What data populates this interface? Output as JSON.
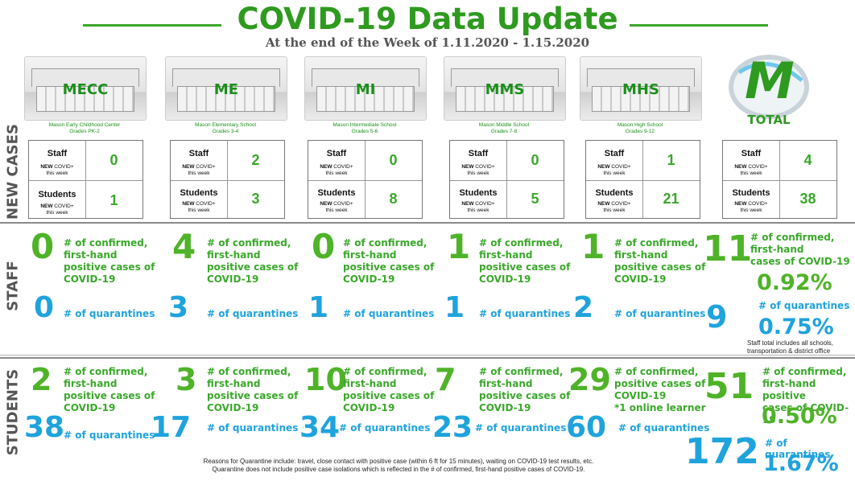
{
  "header": {
    "title": "COVID-19 Data Update",
    "subtitle": "At the end of the Week of 1.11.2020 - 1.15.2020"
  },
  "row_labels": {
    "new_cases": "NEW CASES",
    "staff": "STAFF",
    "students": "STUDENTS"
  },
  "schools": [
    {
      "code": "MECC",
      "name": "Mason Early Childhood Center",
      "grades": "Grades PK-2"
    },
    {
      "code": "ME",
      "name": "Mason Elementary School",
      "grades": "Grades 3-4"
    },
    {
      "code": "MI",
      "name": "Mason Intermediate  School",
      "grades": "Grades 5-6"
    },
    {
      "code": "MMS",
      "name": "Mason Middle School",
      "grades": "Grades 7-8"
    },
    {
      "code": "MHS",
      "name": "Mason High School",
      "grades": "Grades 9-12"
    }
  ],
  "total": {
    "logo_letter": "M",
    "label": "TOTAL"
  },
  "card_labels": {
    "staff": "Staff",
    "students": "Students",
    "new_bold": "NEW",
    "new_rest": " COVID+",
    "this_week": "this week"
  },
  "new_cases": [
    {
      "staff": "0",
      "students": "1"
    },
    {
      "staff": "2",
      "students": "3"
    },
    {
      "staff": "0",
      "students": "8"
    },
    {
      "staff": "0",
      "students": "5"
    },
    {
      "staff": "1",
      "students": "21"
    },
    {
      "staff": "4",
      "students": "38"
    }
  ],
  "staff": [
    {
      "confirmed": "0",
      "quarantines": "0"
    },
    {
      "confirmed": "4",
      "quarantines": "3"
    },
    {
      "confirmed": "0",
      "quarantines": "1"
    },
    {
      "confirmed": "1",
      "quarantines": "1"
    },
    {
      "confirmed": "1",
      "quarantines": "2"
    }
  ],
  "staff_total": {
    "confirmed": "11",
    "confirmed_pct": "0.92%",
    "quarantines": "9",
    "quarantines_pct": "0.75%",
    "note1": "Staff total includes all schools,",
    "note2": "transportation & district office"
  },
  "students": [
    {
      "confirmed": "2",
      "quarantines": "38"
    },
    {
      "confirmed": "3",
      "quarantines": "17"
    },
    {
      "confirmed": "10",
      "quarantines": "34"
    },
    {
      "confirmed": "7",
      "quarantines": "23"
    },
    {
      "confirmed": "29",
      "quarantines": "60",
      "note": "*1 online learner"
    }
  ],
  "students_total": {
    "confirmed": "51",
    "confirmed_pct": "0.50%",
    "quarantines": "172",
    "quarantines_pct": "1.67%"
  },
  "text": {
    "confirmed_l1": "# of confirmed,",
    "confirmed_l2": "first-hand",
    "confirmed_l3": "positive cases of",
    "confirmed_l4": "COVID-19",
    "mhs_l2": "positive cases of",
    "mhs_l3": "COVID-19",
    "total_l2": "first-hand positive",
    "total_l3": "cases of COVID-19",
    "quarantines": "# of quarantines"
  },
  "footer": {
    "line1": "Reasons for Quarantine include: travel, close contact with positive case (within 6 ft for 15 minutes), waiting on COVID-19 test results, etc.",
    "line2": "Quarantine does not include positive case isolations which is reflected in the # of confirmed, first-hand positive cases of COVID-19."
  },
  "colors": {
    "green": "#3aa82a",
    "blue": "#1fa3dd",
    "title_green": "#2e9a1f"
  }
}
